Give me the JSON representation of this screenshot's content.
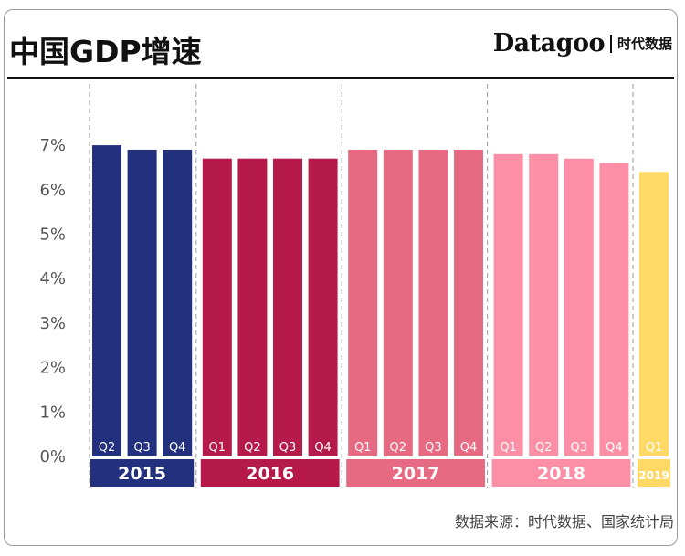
{
  "header": {
    "title": "中国GDP增速",
    "brand_name": "Datagoo",
    "brand_tag": "时代数据"
  },
  "footer": {
    "source": "数据来源：时代数据、国家统计局"
  },
  "colors": {
    "2015": "#22307e",
    "2016": "#b51a4b",
    "2017": "#e56a82",
    "2018": "#fc8fa6",
    "2019": "#ffd966"
  },
  "chart_data": {
    "type": "bar",
    "title": "中国GDP增速",
    "ylabel": "",
    "xlabel": "",
    "ylim": [
      0,
      7.7
    ],
    "yticks": [
      "0%",
      "1%",
      "2%",
      "3%",
      "4%",
      "5%",
      "6%",
      "7%"
    ],
    "grid": "vertical dashed separators between years",
    "groups": [
      {
        "year": "2015",
        "quarters": [
          "Q2",
          "Q3",
          "Q4"
        ],
        "values": [
          7.0,
          6.9,
          6.9
        ]
      },
      {
        "year": "2016",
        "quarters": [
          "Q1",
          "Q2",
          "Q3",
          "Q4"
        ],
        "values": [
          6.7,
          6.7,
          6.7,
          6.7
        ]
      },
      {
        "year": "2017",
        "quarters": [
          "Q1",
          "Q2",
          "Q3",
          "Q4"
        ],
        "values": [
          6.9,
          6.9,
          6.9,
          6.9
        ]
      },
      {
        "year": "2018",
        "quarters": [
          "Q1",
          "Q2",
          "Q3",
          "Q4"
        ],
        "values": [
          6.8,
          6.8,
          6.7,
          6.6
        ]
      },
      {
        "year": "2019",
        "quarters": [
          "Q1"
        ],
        "values": [
          6.4
        ]
      }
    ]
  }
}
